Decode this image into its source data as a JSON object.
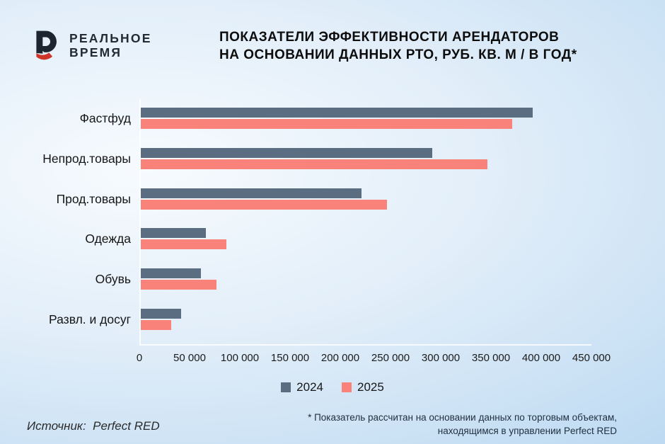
{
  "logo": {
    "line1": "РЕАЛЬНОЕ",
    "line2": "ВРЕМЯ"
  },
  "title": {
    "line1": "ПОКАЗАТЕЛИ ЭФФЕКТИВНОСТИ АРЕНДАТОРОВ",
    "line2": "НА ОСНОВАНИИ ДАННЫХ РТО, РУБ. КВ. М / В ГОД*"
  },
  "chart_data": {
    "type": "bar",
    "orientation": "horizontal",
    "title": "Показатели эффективности арендаторов на основании данных РТО, руб. кв. м / в год",
    "categories": [
      "Фастфуд",
      "Непрод.товары",
      "Прод.товары",
      "Одежда",
      "Обувь",
      "Развл. и досуг"
    ],
    "series": [
      {
        "name": "2024",
        "color": "#5b6d80",
        "values": [
          390000,
          290000,
          220000,
          65000,
          60000,
          40000
        ]
      },
      {
        "name": "2025",
        "color": "#f9837a",
        "values": [
          370000,
          345000,
          245000,
          85000,
          75000,
          30000
        ]
      }
    ],
    "xlim": [
      0,
      450000
    ],
    "tick_step": 50000,
    "x_ticks": [
      "0",
      "50 000",
      "100 000",
      "150 000",
      "200 000",
      "250 000",
      "300 000",
      "350 000",
      "400 000",
      "450 000"
    ],
    "grid": false,
    "legend_position": "bottom"
  },
  "footer": {
    "source": "Источник:  Perfect RED",
    "footnote_line1": "* Показатель рассчитан на основании данных по торговым объектам,",
    "footnote_line2": "находящимся в управлении Perfect RED"
  },
  "colors": {
    "background_center": "#f7fbfe",
    "background_edge": "#b4d5f0",
    "bar_2024": "#5b6d80",
    "bar_2025": "#f9837a",
    "logo_dark": "#1d2530",
    "logo_red": "#cd3529",
    "title_text": "#0d0d0d",
    "footnote_text": "#203040"
  }
}
